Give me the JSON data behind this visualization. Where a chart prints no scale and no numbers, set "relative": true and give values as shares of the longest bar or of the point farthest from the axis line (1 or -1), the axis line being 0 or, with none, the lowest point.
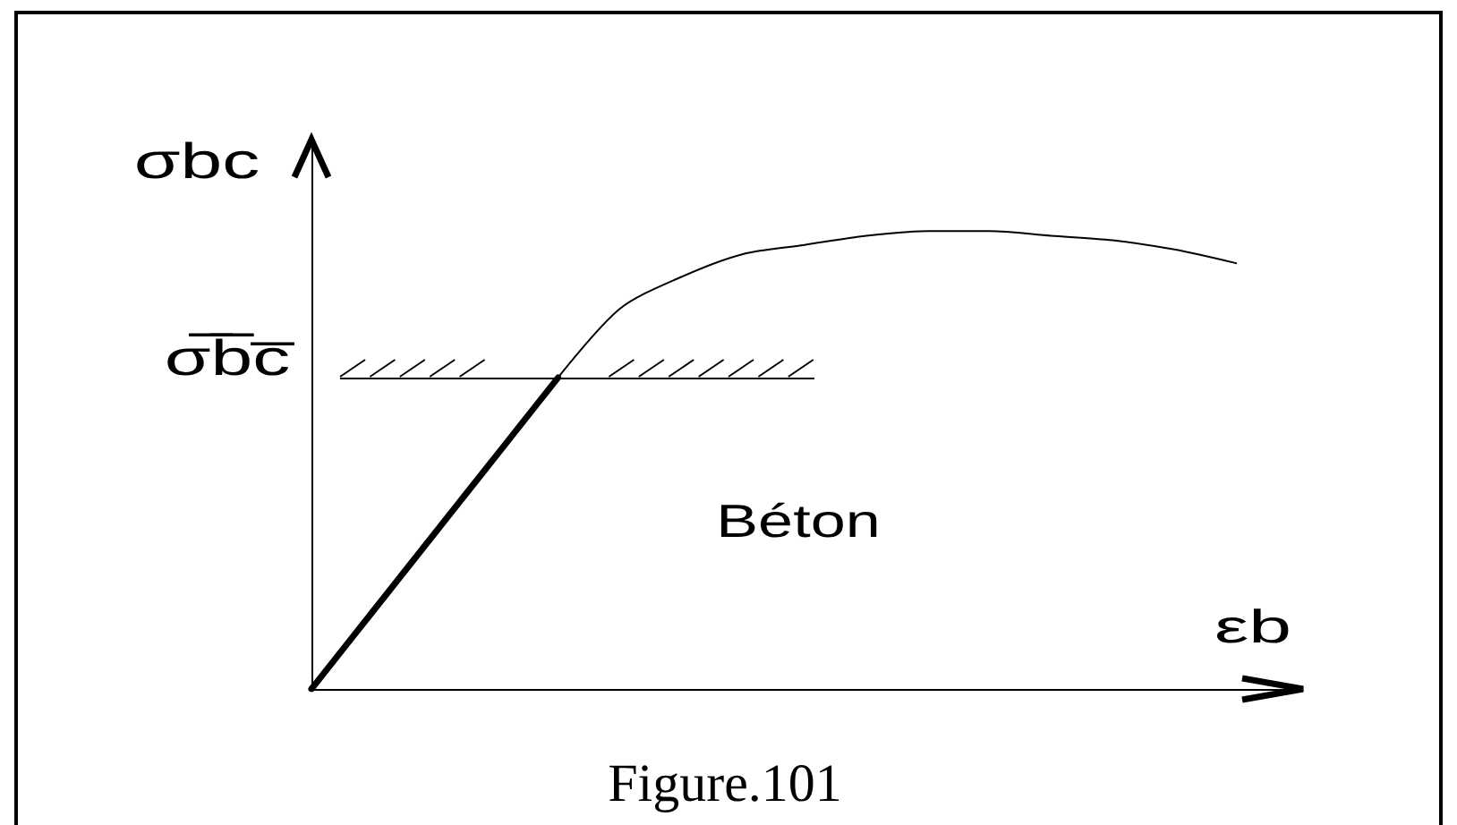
{
  "chart_data": {
    "type": "line",
    "relative": true,
    "categories": [
      null,
      null,
      null,
      null,
      null,
      null,
      null,
      null,
      null,
      null,
      null,
      null,
      null,
      null,
      null,
      null,
      null
    ],
    "series": [
      {
        "color": "#000000",
        "values": [
          0,
          0.17,
          0.34,
          0.51,
          0.68,
          null,
          null,
          null,
          null,
          null,
          null,
          null,
          null,
          null,
          null,
          null,
          null
        ]
      },
      {
        "color": "#000000",
        "values": [
          null,
          null,
          null,
          null,
          0.68,
          0.83,
          0.9,
          0.95,
          0.97,
          0.99,
          1,
          1,
          0.99,
          0.98,
          0.96,
          0.93,
          null
        ]
      }
    ],
    "xlabel": "εb",
    "ylabel": "σbc",
    "ref_lines": [
      {
        "axis": "y",
        "value": 0.68,
        "label": "σ̅b̅c̅"
      }
    ],
    "annotations": [
      "Béton",
      "Figure.101"
    ]
  }
}
